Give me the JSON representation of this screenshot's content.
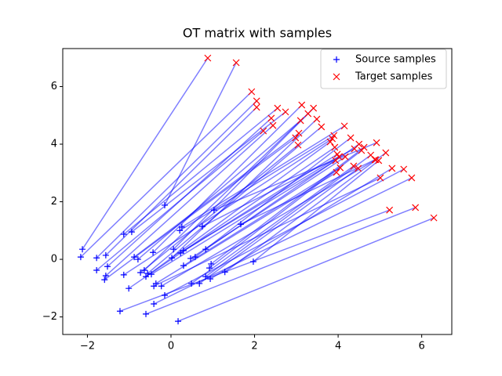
{
  "chart_data": {
    "type": "scatter",
    "title": "OT matrix with samples",
    "xlim": [
      -2.59,
      6.72
    ],
    "ylim": [
      -2.61,
      7.32
    ],
    "xticks": [
      {
        "value": -2,
        "label": "−2"
      },
      0,
      2,
      4,
      6
    ],
    "yticks": [
      {
        "value": -2,
        "label": "−2"
      },
      0,
      2,
      4,
      6
    ],
    "grid": false,
    "legend": "upper right",
    "link_color": "blue",
    "link_alpha": 0.5,
    "series": [
      {
        "name": "Source samples",
        "color": "blue",
        "marker": "+",
        "x": [
          -2.12,
          -2.16,
          -1.78,
          -1.78,
          -1.56,
          -1.52,
          -1.59,
          -1.56,
          -1.13,
          -0.94,
          -0.88,
          -0.79,
          -0.73,
          -0.64,
          -0.56,
          -0.6,
          -1.13,
          -1.01,
          -1.22,
          -0.6,
          -0.41,
          -0.15,
          -0.41,
          -0.36,
          -0.47,
          -0.43,
          -0.15,
          0.06,
          0.02,
          0.21,
          0.26,
          0.23,
          0.3,
          0.3,
          0.47,
          0.58,
          0.49,
          0.68,
          0.17,
          0.75,
          0.83,
          0.83,
          0.92,
          0.96,
          0.94,
          1.03,
          1.29,
          1.67,
          1.97,
          -0.23
        ],
        "y": [
          0.35,
          0.08,
          0.05,
          -0.38,
          0.14,
          -0.25,
          -0.71,
          -0.57,
          0.87,
          0.95,
          0.08,
          0,
          -0.46,
          -0.38,
          -0.49,
          -0.6,
          -0.54,
          -1.01,
          -1.8,
          -1.9,
          -1.55,
          -1.25,
          -0.93,
          -0.84,
          -0.52,
          0.24,
          1.88,
          0.35,
          0.05,
          1.0,
          1.12,
          0.22,
          0.3,
          -0.22,
          0.03,
          0.08,
          -0.84,
          -0.84,
          -2.15,
          1.14,
          0.35,
          -0.6,
          -0.3,
          -0.16,
          -0.68,
          1.71,
          -0.44,
          1.22,
          -0.08,
          -0.93
        ]
      },
      {
        "name": "Target samples",
        "color": "red",
        "marker": "x",
        "x": [
          0.88,
          1.93,
          2.05,
          2.21,
          2.05,
          2.4,
          2.98,
          2.44,
          2.55,
          2.74,
          3.06,
          3.1,
          3.04,
          3.28,
          3.6,
          3.81,
          3.86,
          3.92,
          5.23,
          5.85,
          5.76,
          5.57,
          5.01,
          3.96,
          3.94,
          3.13,
          1.56,
          3.41,
          3.49,
          3.9,
          4.15,
          3.98,
          4.02,
          4.05,
          4.17,
          4.3,
          4.37,
          4.48,
          6.29,
          4.39,
          4.5,
          4.78,
          4.56,
          4.62,
          5.29,
          4.92,
          5.14,
          4.88,
          4.97,
          4.9
        ],
        "y": [
          6.99,
          5.82,
          5.5,
          4.46,
          5.28,
          4.9,
          4.22,
          4.65,
          5.25,
          5.12,
          4.38,
          4.82,
          3.97,
          5.06,
          4.6,
          4.08,
          4.19,
          3.89,
          1.71,
          1.8,
          2.83,
          3.13,
          2.83,
          3.02,
          3.43,
          5.36,
          6.83,
          5.25,
          4.87,
          4.3,
          4.63,
          3.65,
          3.56,
          3.18,
          3.56,
          4.22,
          3.24,
          3.16,
          1.44,
          3.84,
          4.0,
          3.62,
          3.78,
          3.89,
          3.16,
          4.05,
          3.7,
          3.46,
          3.43,
          3.46
        ]
      }
    ]
  }
}
